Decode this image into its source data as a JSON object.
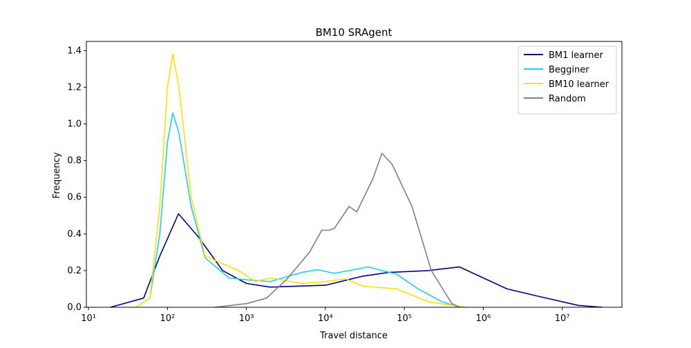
{
  "chart_data": {
    "type": "line",
    "title": "BM10 SRAgent",
    "xlabel": "Travel distance",
    "ylabel": "Frequency",
    "xscale": "log",
    "xlim": [
      9.4,
      57000000
    ],
    "ylim": [
      0,
      1.45
    ],
    "xticks": [
      {
        "value": 10,
        "label": "10¹"
      },
      {
        "value": 100,
        "label": "10²"
      },
      {
        "value": 1000,
        "label": "10³"
      },
      {
        "value": 10000,
        "label": "10⁴"
      },
      {
        "value": 100000,
        "label": "10⁵"
      },
      {
        "value": 1000000,
        "label": "10⁶"
      },
      {
        "value": 10000000,
        "label": "10⁷"
      }
    ],
    "yticks": [
      0,
      0.2,
      0.4,
      0.6,
      0.8,
      1.0,
      1.2,
      1.4
    ],
    "legend": "upper right",
    "series": [
      {
        "name": "BM1 learner",
        "color": "#00007f",
        "x": [
          19,
          50,
          80,
          138,
          250,
          500,
          1000,
          2000,
          10000,
          30000,
          63000,
          200000,
          500000,
          2000000,
          5000000,
          16000000,
          32000000
        ],
        "values": [
          0,
          0.05,
          0.28,
          0.51,
          0.38,
          0.2,
          0.13,
          0.11,
          0.12,
          0.17,
          0.19,
          0.2,
          0.22,
          0.1,
          0.06,
          0.01,
          0
        ]
      },
      {
        "name": "Begginer",
        "color": "#1ccdf0",
        "x": [
          40,
          60,
          80,
          100,
          117,
          140,
          200,
          300,
          600,
          1000,
          2000,
          5000,
          8000,
          13000,
          35000,
          80000,
          150000,
          300000,
          500000
        ],
        "values": [
          0,
          0.05,
          0.4,
          0.9,
          1.06,
          0.95,
          0.55,
          0.27,
          0.16,
          0.15,
          0.14,
          0.19,
          0.205,
          0.185,
          0.22,
          0.18,
          0.1,
          0.03,
          0
        ]
      },
      {
        "name": "BM10 learner",
        "color": "#ffe000",
        "x": [
          40,
          60,
          80,
          100,
          117,
          140,
          200,
          300,
          800,
          1300,
          2000,
          5000,
          10000,
          18000,
          30000,
          80000,
          200000,
          600000
        ],
        "values": [
          0,
          0.05,
          0.55,
          1.2,
          1.38,
          1.2,
          0.6,
          0.28,
          0.2,
          0.14,
          0.16,
          0.13,
          0.14,
          0.155,
          0.115,
          0.1,
          0.03,
          0
        ]
      },
      {
        "name": "Random",
        "color": "#808080",
        "x": [
          400,
          1000,
          1800,
          3200,
          6300,
          9000,
          11000,
          13000,
          20000,
          25000,
          40000,
          52000,
          70000,
          125000,
          220000,
          400000,
          500000
        ],
        "values": [
          0,
          0.02,
          0.05,
          0.15,
          0.3,
          0.42,
          0.42,
          0.43,
          0.55,
          0.52,
          0.7,
          0.84,
          0.78,
          0.55,
          0.2,
          0.02,
          0
        ]
      }
    ]
  }
}
